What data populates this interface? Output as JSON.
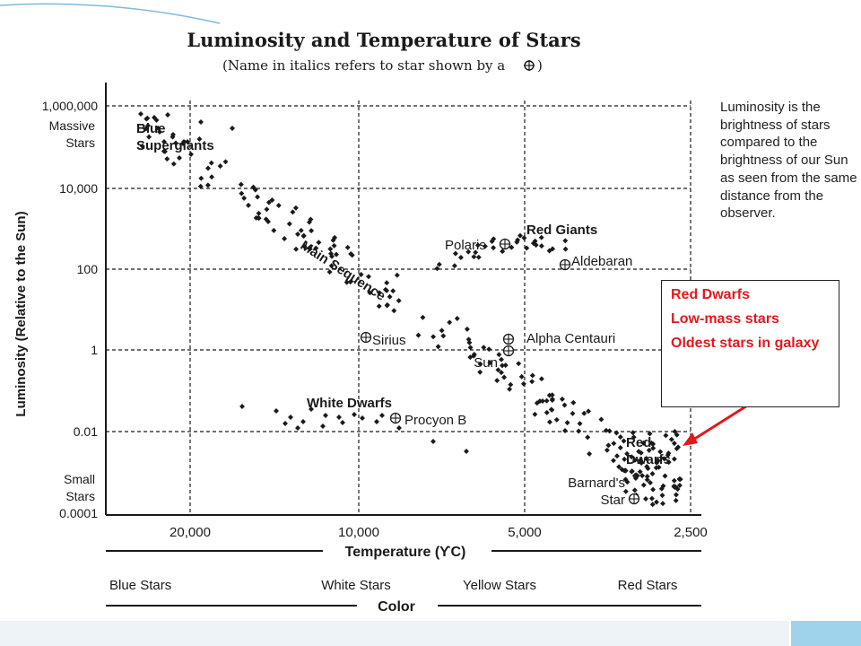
{
  "slide": {
    "colors": {
      "accent_bar": "#9fd3ec",
      "bottom_bar": "#eef3f8",
      "corner_curve": "#7fb9dd",
      "callout_text": "#e2191c",
      "arrow": "#e2191c"
    }
  },
  "description": "Luminosity is the brightness of stars compared to the brightness of our Sun as seen from the same distance from the observer.",
  "callout": {
    "lines": [
      "Red Dwarfs",
      "Low-mass stars",
      "Oldest stars in galaxy"
    ]
  },
  "chart_data": {
    "type": "scatter",
    "title": "Luminosity and Temperature of Stars",
    "subtitle": "(Name in italics refers to star shown by a",
    "subtitle_end": ")",
    "xlabel": "Temperature (ϒC)",
    "ylabel": "Luminosity (Relative to the Sun)",
    "x_scale": "reversed",
    "x_ticks": [
      "20,000",
      "10,000",
      "5,000",
      "2,500"
    ],
    "x_tick_values": [
      20000,
      10000,
      5000,
      2500
    ],
    "y_scale": "log",
    "y_ticks": [
      "1,000,000",
      "10,000",
      "100",
      "1",
      "0.01",
      "0.0001"
    ],
    "y_tick_values": [
      1000000,
      10000,
      100,
      1,
      0.01,
      0.0001
    ],
    "y_tick_sublabels": {
      "top": [
        "Massive",
        "Stars"
      ],
      "bottom": [
        "Small",
        "Stars"
      ]
    },
    "color_axis_label": "Color",
    "color_bands": [
      "Blue Stars",
      "White Stars",
      "Yellow Stars",
      "Red Stars"
    ],
    "grid": true,
    "region_labels": [
      "Blue Supergiants",
      "Main Sequence",
      "Red Giants",
      "White Dwarfs",
      "Red Dwarfs"
    ],
    "named_stars": [
      {
        "name": "Polaris",
        "temperature": 5400,
        "luminosity": 400
      },
      {
        "name": "Aldebaran",
        "temperature": 4000,
        "luminosity": 150
      },
      {
        "name": "Sirius",
        "temperature": 10000,
        "luminosity": 26
      },
      {
        "name": "Alpha Centauri",
        "temperature": 5500,
        "luminosity": 1.5
      },
      {
        "name": "Sun",
        "temperature": 5500,
        "luminosity": 1
      },
      {
        "name": "Procyon B",
        "temperature": 8000,
        "luminosity": 0.055
      },
      {
        "name": "Barnard's Star",
        "temperature": 3000,
        "luminosity": 0.0004
      }
    ],
    "point_groups": [
      {
        "name": "main_sequence",
        "count": 170
      },
      {
        "name": "blue_supergiants",
        "count": 12
      },
      {
        "name": "red_giants",
        "count": 30
      },
      {
        "name": "white_dwarfs",
        "count": 18
      },
      {
        "name": "red_dwarfs",
        "count": 70
      }
    ]
  }
}
